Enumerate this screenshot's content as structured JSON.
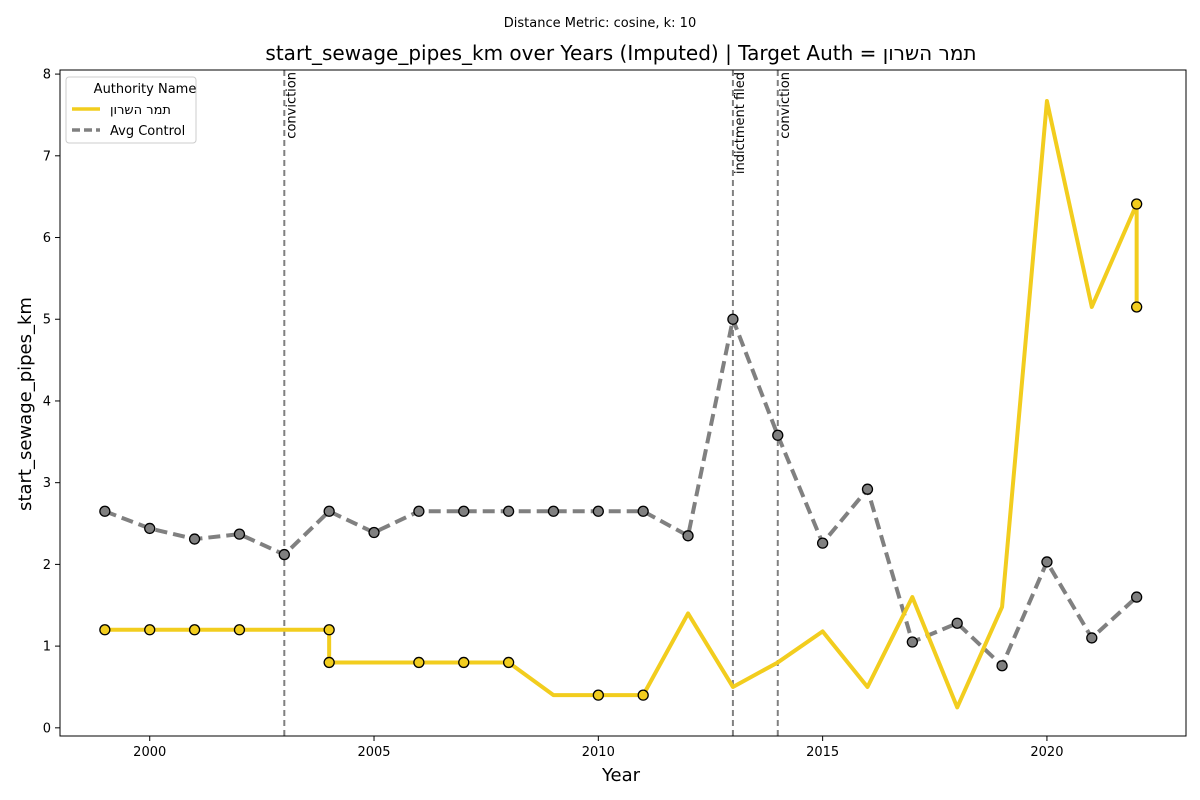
{
  "chart_data": {
    "type": "line",
    "suptitle": "Distance Metric: cosine, k: 10",
    "title": "start_sewage_pipes_km over Years (Imputed) | Target Auth = תמר השרון",
    "xlabel": "Year",
    "ylabel": "start_sewage_pipes_km",
    "xlim": [
      1998,
      2023.1
    ],
    "ylim": [
      -0.1,
      8.05
    ],
    "xticks": [
      2000,
      2005,
      2010,
      2015,
      2020
    ],
    "yticks": [
      0,
      1,
      2,
      3,
      4,
      5,
      6,
      7,
      8
    ],
    "legend": {
      "title": "Authority Name",
      "position": "top-left"
    },
    "events": [
      {
        "x": 2003,
        "label": "conviction"
      },
      {
        "x": 2013,
        "label": "indictment filed"
      },
      {
        "x": 2014,
        "label": "conviction"
      }
    ],
    "series": [
      {
        "name": "תמר השרון",
        "color": "#f2cd1e",
        "style": "solid",
        "points": [
          [
            1999,
            1.2
          ],
          [
            2000,
            1.2
          ],
          [
            2001,
            1.2
          ],
          [
            2002,
            1.2
          ],
          [
            2003,
            1.2
          ],
          [
            2004,
            1.2
          ],
          [
            2004,
            0.8
          ],
          [
            2005,
            0.8
          ],
          [
            2006,
            0.8
          ],
          [
            2007,
            0.8
          ],
          [
            2008,
            0.8
          ],
          [
            2009,
            0.4
          ],
          [
            2010,
            0.4
          ],
          [
            2011,
            0.4
          ],
          [
            2012,
            1.4
          ],
          [
            2013,
            0.5
          ],
          [
            2014,
            0.8
          ],
          [
            2015,
            1.18
          ],
          [
            2016,
            0.5
          ],
          [
            2017,
            1.6
          ],
          [
            2018,
            0.25
          ],
          [
            2019,
            1.48
          ],
          [
            2020,
            7.67
          ],
          [
            2021,
            5.15
          ],
          [
            2022,
            6.41
          ],
          [
            2022,
            5.15
          ]
        ],
        "markers": [
          [
            1999,
            1.2
          ],
          [
            2000,
            1.2
          ],
          [
            2001,
            1.2
          ],
          [
            2002,
            1.2
          ],
          [
            2004,
            1.2
          ],
          [
            2004,
            0.8
          ],
          [
            2006,
            0.8
          ],
          [
            2007,
            0.8
          ],
          [
            2008,
            0.8
          ],
          [
            2010,
            0.4
          ],
          [
            2011,
            0.4
          ],
          [
            2022,
            6.41
          ],
          [
            2022,
            5.15
          ]
        ]
      },
      {
        "name": "Avg Control",
        "color": "#808080",
        "style": "dashed",
        "points": [
          [
            1999,
            2.65
          ],
          [
            2000,
            2.44
          ],
          [
            2001,
            2.31
          ],
          [
            2002,
            2.37
          ],
          [
            2003,
            2.12
          ],
          [
            2004,
            2.65
          ],
          [
            2005,
            2.39
          ],
          [
            2006,
            2.65
          ],
          [
            2007,
            2.65
          ],
          [
            2008,
            2.65
          ],
          [
            2009,
            2.65
          ],
          [
            2010,
            2.65
          ],
          [
            2011,
            2.65
          ],
          [
            2012,
            2.35
          ],
          [
            2013,
            5.0
          ],
          [
            2014,
            3.58
          ],
          [
            2015,
            2.26
          ],
          [
            2016,
            2.92
          ],
          [
            2017,
            1.05
          ],
          [
            2018,
            1.28
          ],
          [
            2019,
            0.76
          ],
          [
            2020,
            2.03
          ],
          [
            2021,
            1.1
          ],
          [
            2022,
            1.6
          ]
        ],
        "markers": [
          [
            1999,
            2.65
          ],
          [
            2000,
            2.44
          ],
          [
            2001,
            2.31
          ],
          [
            2002,
            2.37
          ],
          [
            2003,
            2.12
          ],
          [
            2004,
            2.65
          ],
          [
            2005,
            2.39
          ],
          [
            2006,
            2.65
          ],
          [
            2007,
            2.65
          ],
          [
            2008,
            2.65
          ],
          [
            2009,
            2.65
          ],
          [
            2010,
            2.65
          ],
          [
            2011,
            2.65
          ],
          [
            2012,
            2.35
          ],
          [
            2013,
            5.0
          ],
          [
            2014,
            3.58
          ],
          [
            2015,
            2.26
          ],
          [
            2016,
            2.92
          ],
          [
            2017,
            1.05
          ],
          [
            2018,
            1.28
          ],
          [
            2019,
            0.76
          ],
          [
            2020,
            2.03
          ],
          [
            2021,
            1.1
          ],
          [
            2022,
            1.6
          ]
        ]
      }
    ],
    "marker_color": "#808080",
    "event_line_color": "#808080"
  }
}
